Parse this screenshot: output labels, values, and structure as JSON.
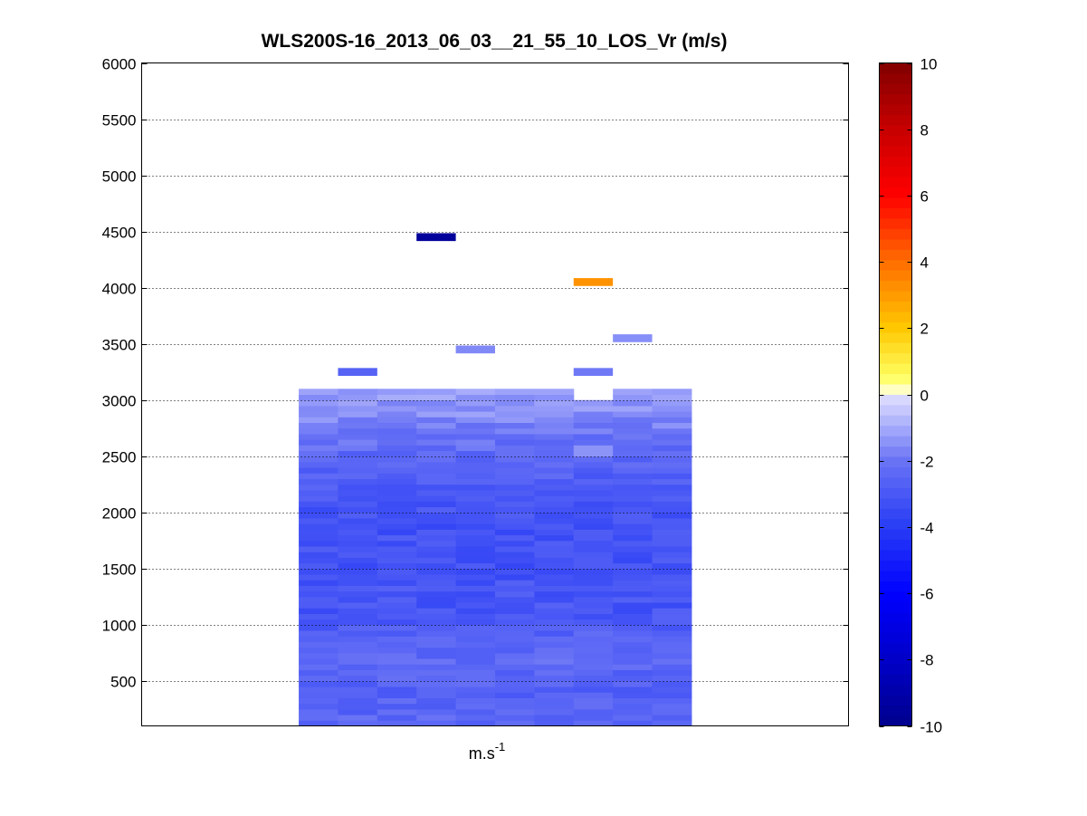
{
  "chart_data": {
    "type": "heatmap",
    "title": "WLS200S-16_2013_06_03__21_55_10_LOS_Vr (m/s)",
    "xlabel_base": "m.s",
    "xlabel_exponent": "-1",
    "ylabel": "",
    "ylim": [
      100,
      6000
    ],
    "yticks": [
      500,
      1000,
      1500,
      2000,
      2500,
      3000,
      3500,
      4000,
      4500,
      5000,
      5500,
      6000
    ],
    "grid": "y-dotted",
    "n_columns": 18,
    "data_columns": [
      5,
      14
    ],
    "column_spacing_x": 0.5,
    "range_gate_m": 50,
    "bulk_top_m": 3100,
    "bulk_bottom_m": 100,
    "colorbar": {
      "min": -10,
      "max": 10,
      "ticks": [
        -10,
        -8,
        -6,
        -4,
        -2,
        0,
        2,
        4,
        6,
        8,
        10
      ],
      "placement": "right"
    },
    "scattered_cells": [
      {
        "col": 8,
        "altitude": 4450,
        "value": -9.5
      },
      {
        "col": 12,
        "altitude": 4050,
        "value": 3.2
      },
      {
        "col": 13,
        "altitude": 3550,
        "value": -1.5
      },
      {
        "col": 9,
        "altitude": 3450,
        "value": -1.6
      },
      {
        "col": 6,
        "altitude": 3250,
        "value": -2.6
      },
      {
        "col": 12,
        "altitude": 3250,
        "value": -1.9
      }
    ],
    "profile": [
      {
        "altitude": 3050,
        "value": -1.2
      },
      {
        "altitude": 2950,
        "value": -1.4
      },
      {
        "altitude": 2850,
        "value": -1.6
      },
      {
        "altitude": 2700,
        "value": -2.0
      },
      {
        "altitude": 2500,
        "value": -2.4
      },
      {
        "altitude": 2300,
        "value": -2.7
      },
      {
        "altitude": 2100,
        "value": -3.0
      },
      {
        "altitude": 1900,
        "value": -3.2
      },
      {
        "altitude": 1700,
        "value": -3.1
      },
      {
        "altitude": 1500,
        "value": -3.2
      },
      {
        "altitude": 1300,
        "value": -3.0
      },
      {
        "altitude": 1100,
        "value": -3.1
      },
      {
        "altitude": 900,
        "value": -2.6
      },
      {
        "altitude": 700,
        "value": -2.3
      },
      {
        "altitude": 500,
        "value": -2.6
      },
      {
        "altitude": 300,
        "value": -2.6
      },
      {
        "altitude": 100,
        "value": -2.3
      }
    ]
  }
}
